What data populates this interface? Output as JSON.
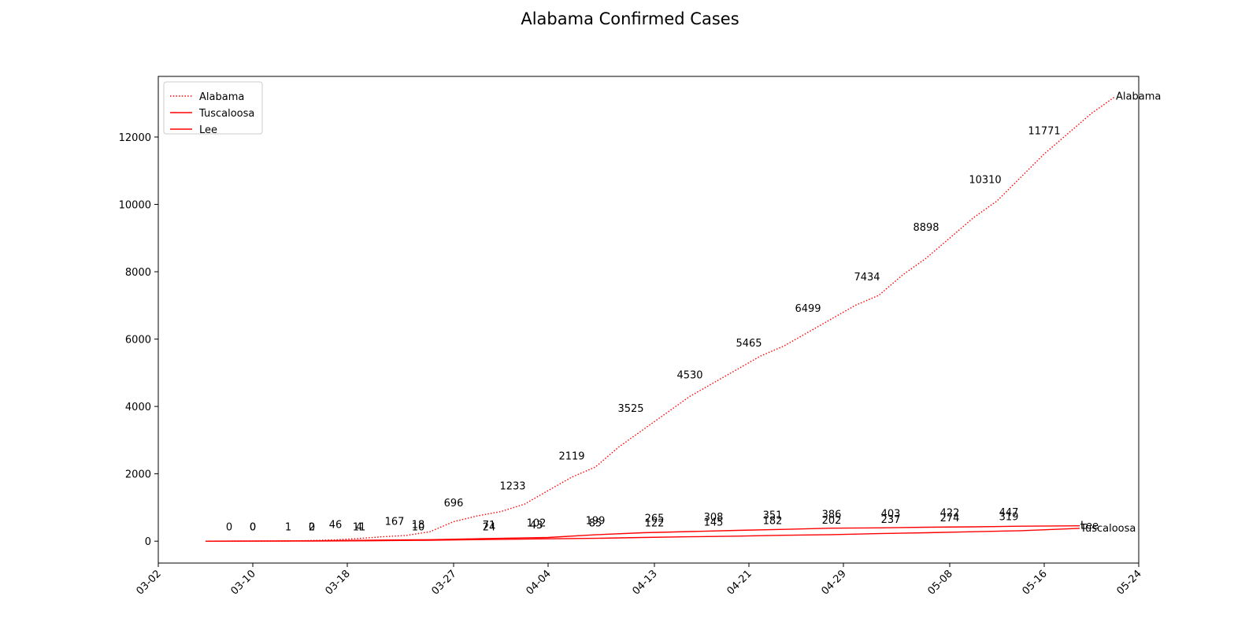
{
  "chart_data": {
    "type": "line",
    "title": "Alabama Confirmed Cases",
    "xlabel": "",
    "ylabel": "",
    "x_range": [
      "2020-03-02",
      "2020-05-24"
    ],
    "ylim": [
      -650,
      13800
    ],
    "yticks": [
      0,
      2000,
      4000,
      6000,
      8000,
      10000,
      12000
    ],
    "xticks": [
      "2020-03-02",
      "2020-03-10",
      "2020-03-18",
      "2020-03-27",
      "2020-04-04",
      "2020-04-13",
      "2020-04-21",
      "2020-04-29",
      "2020-05-08",
      "2020-05-16",
      "2020-05-24"
    ],
    "xtick_labels": [
      "03-02",
      "03-10",
      "03-18",
      "03-27",
      "04-04",
      "04-13",
      "04-21",
      "04-29",
      "05-08",
      "05-16",
      "05-24"
    ],
    "grid": false,
    "legend_position": "top-left",
    "series": [
      {
        "name": "Alabama",
        "color": "#ff0000",
        "style": "dotted",
        "end_label": "Alabama",
        "points": [
          [
            "2020-03-06",
            0
          ],
          [
            "2020-03-13",
            5
          ],
          [
            "2020-03-15",
            20
          ],
          [
            "2020-03-17",
            40
          ],
          [
            "2020-03-19",
            80
          ],
          [
            "2020-03-21",
            130
          ],
          [
            "2020-03-23",
            170
          ],
          [
            "2020-03-25",
            280
          ],
          [
            "2020-03-27",
            580
          ],
          [
            "2020-03-29",
            750
          ],
          [
            "2020-03-31",
            880
          ],
          [
            "2020-04-02",
            1100
          ],
          [
            "2020-04-04",
            1500
          ],
          [
            "2020-04-06",
            1900
          ],
          [
            "2020-04-08",
            2200
          ],
          [
            "2020-04-10",
            2800
          ],
          [
            "2020-04-12",
            3300
          ],
          [
            "2020-04-14",
            3800
          ],
          [
            "2020-04-16",
            4300
          ],
          [
            "2020-04-18",
            4700
          ],
          [
            "2020-04-20",
            5100
          ],
          [
            "2020-04-22",
            5500
          ],
          [
            "2020-04-24",
            5800
          ],
          [
            "2020-04-26",
            6200
          ],
          [
            "2020-04-28",
            6600
          ],
          [
            "2020-04-30",
            7000
          ],
          [
            "2020-05-02",
            7300
          ],
          [
            "2020-05-04",
            7900
          ],
          [
            "2020-05-06",
            8400
          ],
          [
            "2020-05-08",
            9000
          ],
          [
            "2020-05-10",
            9600
          ],
          [
            "2020-05-12",
            10100
          ],
          [
            "2020-05-14",
            10800
          ],
          [
            "2020-05-16",
            11500
          ],
          [
            "2020-05-18",
            12100
          ],
          [
            "2020-05-20",
            12700
          ],
          [
            "2020-05-22",
            13200
          ]
        ]
      },
      {
        "name": "Tuscaloosa",
        "color": "#ff0000",
        "style": "solid",
        "end_label": "Tuscaloosa",
        "points": [
          [
            "2020-03-06",
            0
          ],
          [
            "2020-03-15",
            2
          ],
          [
            "2020-03-20",
            12
          ],
          [
            "2020-03-25",
            28
          ],
          [
            "2020-03-30",
            50
          ],
          [
            "2020-04-04",
            70
          ],
          [
            "2020-04-08",
            85
          ],
          [
            "2020-04-12",
            110
          ],
          [
            "2020-04-16",
            130
          ],
          [
            "2020-04-20",
            150
          ],
          [
            "2020-04-24",
            175
          ],
          [
            "2020-04-28",
            195
          ],
          [
            "2020-05-02",
            225
          ],
          [
            "2020-05-06",
            250
          ],
          [
            "2020-05-10",
            280
          ],
          [
            "2020-05-14",
            310
          ],
          [
            "2020-05-19",
            380
          ]
        ]
      },
      {
        "name": "Lee",
        "color": "#ff0000",
        "style": "solid",
        "end_label": "Lee",
        "points": [
          [
            "2020-03-06",
            0
          ],
          [
            "2020-03-15",
            10
          ],
          [
            "2020-03-20",
            30
          ],
          [
            "2020-03-25",
            45
          ],
          [
            "2020-03-30",
            80
          ],
          [
            "2020-04-04",
            110
          ],
          [
            "2020-04-08",
            190
          ],
          [
            "2020-04-12",
            250
          ],
          [
            "2020-04-16",
            285
          ],
          [
            "2020-04-20",
            320
          ],
          [
            "2020-04-24",
            350
          ],
          [
            "2020-04-28",
            385
          ],
          [
            "2020-05-02",
            395
          ],
          [
            "2020-05-06",
            415
          ],
          [
            "2020-05-10",
            425
          ],
          [
            "2020-05-14",
            445
          ],
          [
            "2020-05-19",
            455
          ]
        ]
      }
    ],
    "annotations": [
      {
        "text": "0",
        "x": "2020-03-08",
        "y": 410
      },
      {
        "text": "0",
        "x": "2020-03-10",
        "y": 410
      },
      {
        "text": "0",
        "x": "2020-03-10",
        "y": 410
      },
      {
        "text": "1",
        "x": "2020-03-13",
        "y": 410
      },
      {
        "text": "2",
        "x": "2020-03-15",
        "y": 410
      },
      {
        "text": "0",
        "x": "2020-03-15",
        "y": 410
      },
      {
        "text": "46",
        "x": "2020-03-17",
        "y": 480
      },
      {
        "text": "11",
        "x": "2020-03-19",
        "y": 410
      },
      {
        "text": "4",
        "x": "2020-03-19",
        "y": 410
      },
      {
        "text": "167",
        "x": "2020-03-22",
        "y": 580
      },
      {
        "text": "18",
        "x": "2020-03-24",
        "y": 480
      },
      {
        "text": "10",
        "x": "2020-03-24",
        "y": 410
      },
      {
        "text": "696",
        "x": "2020-03-27",
        "y": 1130
      },
      {
        "text": "71",
        "x": "2020-03-30",
        "y": 470
      },
      {
        "text": "24",
        "x": "2020-03-30",
        "y": 410
      },
      {
        "text": "1233",
        "x": "2020-04-01",
        "y": 1630
      },
      {
        "text": "102",
        "x": "2020-04-03",
        "y": 530
      },
      {
        "text": "43",
        "x": "2020-04-03",
        "y": 470
      },
      {
        "text": "2119",
        "x": "2020-04-06",
        "y": 2520
      },
      {
        "text": "199",
        "x": "2020-04-08",
        "y": 600
      },
      {
        "text": "85",
        "x": "2020-04-08",
        "y": 530
      },
      {
        "text": "3525",
        "x": "2020-04-11",
        "y": 3930
      },
      {
        "text": "265",
        "x": "2020-04-13",
        "y": 670
      },
      {
        "text": "122",
        "x": "2020-04-13",
        "y": 530
      },
      {
        "text": "4530",
        "x": "2020-04-16",
        "y": 4930
      },
      {
        "text": "308",
        "x": "2020-04-18",
        "y": 710
      },
      {
        "text": "145",
        "x": "2020-04-18",
        "y": 560
      },
      {
        "text": "5465",
        "x": "2020-04-21",
        "y": 5870
      },
      {
        "text": "351",
        "x": "2020-04-23",
        "y": 760
      },
      {
        "text": "182",
        "x": "2020-04-23",
        "y": 600
      },
      {
        "text": "6499",
        "x": "2020-04-26",
        "y": 6900
      },
      {
        "text": "386",
        "x": "2020-04-28",
        "y": 790
      },
      {
        "text": "202",
        "x": "2020-04-28",
        "y": 610
      },
      {
        "text": "7434",
        "x": "2020-05-01",
        "y": 7840
      },
      {
        "text": "403",
        "x": "2020-05-03",
        "y": 810
      },
      {
        "text": "237",
        "x": "2020-05-03",
        "y": 640
      },
      {
        "text": "8898",
        "x": "2020-05-06",
        "y": 9310
      },
      {
        "text": "422",
        "x": "2020-05-08",
        "y": 830
      },
      {
        "text": "274",
        "x": "2020-05-08",
        "y": 680
      },
      {
        "text": "10310",
        "x": "2020-05-11",
        "y": 10720
      },
      {
        "text": "447",
        "x": "2020-05-13",
        "y": 850
      },
      {
        "text": "319",
        "x": "2020-05-13",
        "y": 720
      },
      {
        "text": "11771",
        "x": "2020-05-16",
        "y": 12180
      }
    ]
  }
}
